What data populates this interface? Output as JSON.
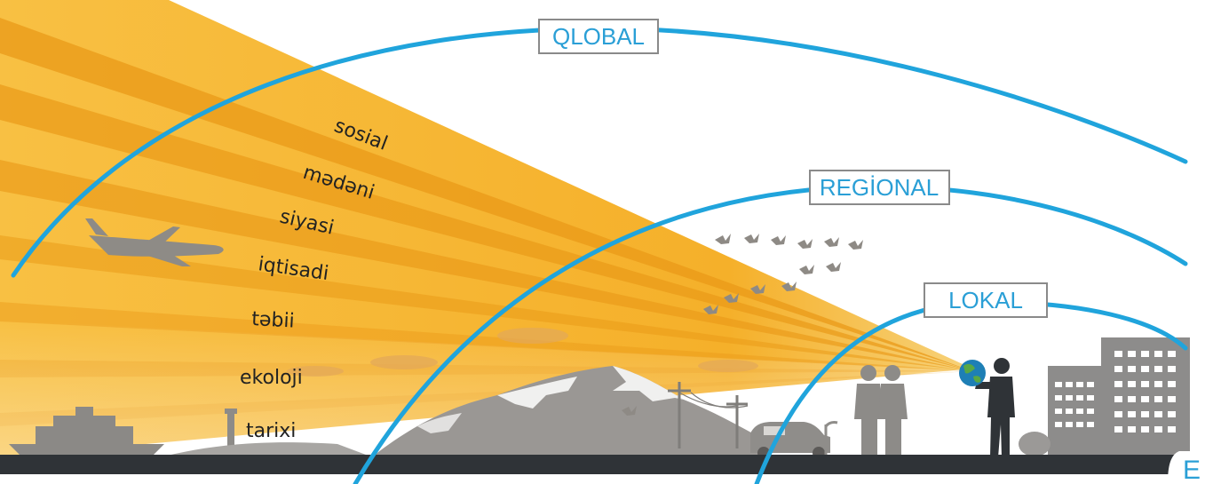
{
  "scales": {
    "global": "QLOBAL",
    "regional": "REGİONAL",
    "local": "LOKAL"
  },
  "domains": [
    "sosial",
    "mədəni",
    "siyasi",
    "iqtisadi",
    "təbii",
    "ekoloji",
    "tarixi"
  ],
  "page_label": "E",
  "colors": {
    "arc": "#20a4dc",
    "ray_light": "#f9c445",
    "ray_dark": "#ee9f1c",
    "ground": "#2f3337",
    "silhouette": "#8e8c8a",
    "label_border": "#8a8a8a",
    "label_text": "#2a9fd6"
  },
  "icons": [
    "airplane-icon",
    "birds-icon",
    "ship-icon",
    "lighthouse-icon",
    "mountain-icon",
    "power-pole-icon",
    "car-icon",
    "people-icon",
    "globe-icon",
    "person-holding-globe-icon",
    "buildings-icon",
    "cloud-icon"
  ]
}
